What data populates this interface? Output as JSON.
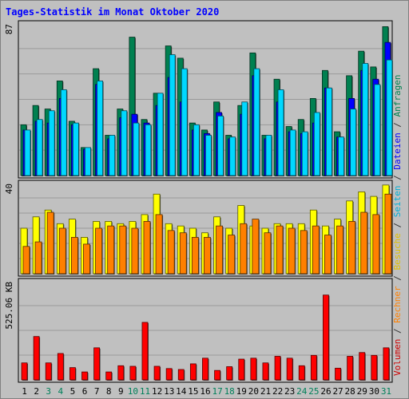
{
  "title": "Tages-Statistik im Monat Oktober 2020",
  "legend": [
    {
      "label": "Volumen",
      "color": "#cc0000"
    },
    {
      "label": "Rechner",
      "color": "#ff8000"
    },
    {
      "label": "Besuche",
      "color": "#e0c000"
    },
    {
      "label": "Seiten",
      "color": "#00b0d8"
    },
    {
      "label": "Dateien",
      "color": "#0000ff"
    },
    {
      "label": "Anfragen",
      "color": "#008050"
    }
  ],
  "legend_separator": "/",
  "chart_data": {
    "type": "bar",
    "categories": [
      "1",
      "2",
      "3",
      "4",
      "5",
      "6",
      "7",
      "8",
      "9",
      "10",
      "11",
      "12",
      "13",
      "14",
      "15",
      "16",
      "17",
      "18",
      "19",
      "20",
      "21",
      "22",
      "23",
      "24",
      "25",
      "26",
      "27",
      "28",
      "29",
      "30",
      "31"
    ],
    "weekend_days": [
      "3",
      "4",
      "10",
      "11",
      "17",
      "18",
      "24",
      "25",
      "31"
    ],
    "panels": [
      {
        "name": "requests",
        "max_label": "87",
        "ylim": [
          0,
          87
        ],
        "series": [
          {
            "name": "Anfragen",
            "color": "#008050",
            "values": [
              29,
              40,
              38,
              54,
              31,
              16,
              61,
              23,
              38,
              79,
              32,
              47,
              74,
              67,
              30,
              26,
              42,
              23,
              40,
              70,
              23,
              55,
              28,
              32,
              44,
              60,
              25,
              57,
              71,
              62,
              85
            ]
          },
          {
            "name": "Dateien",
            "color": "#0000ff",
            "values": [
              26,
              31,
              30,
              44,
              29,
              15,
              52,
              21,
              33,
              35,
              30,
              40,
              56,
              42,
              26,
              24,
              36,
              21,
              35,
              57,
              21,
              42,
              25,
              24,
              30,
              50,
              22,
              44,
              60,
              55,
              76
            ]
          },
          {
            "name": "Seiten",
            "color": "#00d8ff",
            "values": [
              26,
              32,
              37,
              49,
              30,
              16,
              54,
              23,
              37,
              30,
              29,
              47,
              69,
              61,
              29,
              23,
              34,
              22,
              42,
              61,
              23,
              49,
              26,
              25,
              36,
              50,
              22,
              38,
              64,
              52,
              66
            ]
          }
        ]
      },
      {
        "name": "visits",
        "max_label": "40",
        "ylim": [
          0,
          40
        ],
        "series": [
          {
            "name": "Besuche",
            "color": "#ffff00",
            "values": [
              20,
              25,
              28,
              22,
              24,
              16,
              23,
              23,
              22,
              23,
              26,
              35,
              22,
              21,
              20,
              18,
              25,
              20,
              30,
              21,
              20,
              22,
              22,
              22,
              28,
              21,
              24,
              32,
              36,
              34,
              39
            ]
          },
          {
            "name": "Rechner",
            "color": "#ff8000",
            "values": [
              12,
              14,
              27,
              20,
              16,
              13,
              20,
              21,
              21,
              20,
              23,
              26,
              19,
              18,
              16,
              16,
              21,
              17,
              22,
              24,
              18,
              21,
              20,
              19,
              21,
              17,
              21,
              23,
              27,
              26,
              35
            ]
          }
        ]
      },
      {
        "name": "volume",
        "max_label": "525.06 KB",
        "ylim": [
          0,
          525.06
        ],
        "series": [
          {
            "name": "Volumen",
            "color": "#ff0000",
            "values": [
              90,
              230,
              90,
              140,
              65,
              42,
              170,
              42,
              75,
              72,
              305,
              72,
              60,
              55,
              85,
              115,
              50,
              70,
              110,
              115,
              90,
              125,
              115,
              75,
              130,
              450,
              62,
              125,
              145,
              130,
              170
            ]
          }
        ]
      }
    ]
  }
}
